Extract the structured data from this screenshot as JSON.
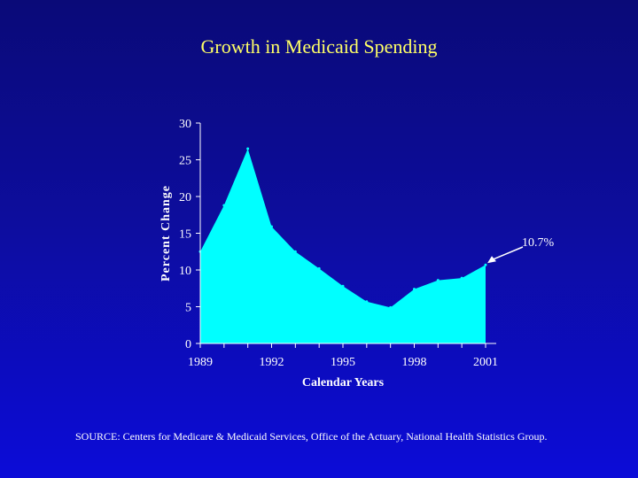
{
  "slide": {
    "title": "Growth in Medicaid Spending",
    "source": "SOURCE: Centers for Medicare & Medicaid Services, Office of the Actuary, National Health Statistics Group."
  },
  "chart_data": {
    "type": "area",
    "title": "Growth in Medicaid Spending",
    "xlabel": "Calendar Years",
    "ylabel": "Percent Change",
    "x": [
      1989,
      1990,
      1991,
      1992,
      1993,
      1994,
      1995,
      1996,
      1997,
      1998,
      1999,
      2000,
      2001
    ],
    "series": [
      {
        "name": "Percent Change",
        "values": [
          12.5,
          18.8,
          26.5,
          15.9,
          12.5,
          10.2,
          7.8,
          5.7,
          4.9,
          7.4,
          8.6,
          8.9,
          10.7
        ]
      }
    ],
    "xticks": [
      "1989",
      "1992",
      "1995",
      "1998",
      "2001"
    ],
    "yticks": [
      "0",
      "5",
      "10",
      "15",
      "20",
      "25",
      "30"
    ],
    "ylim": [
      0,
      30
    ],
    "xlim": [
      1989,
      2001
    ],
    "annotation": {
      "text": "10.7%",
      "x": 2001,
      "y": 10.7
    },
    "colors": {
      "area": "#00ffff",
      "axis": "#ffffff",
      "title": "#ffff66"
    }
  }
}
